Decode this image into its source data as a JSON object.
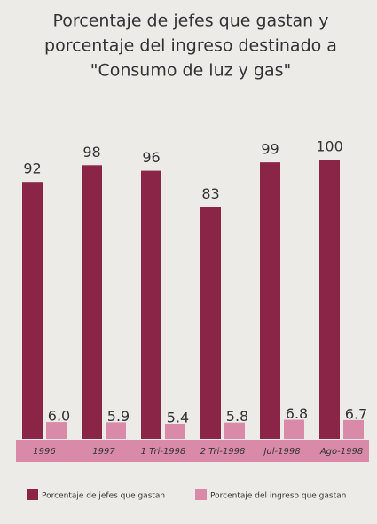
{
  "chart_data": {
    "type": "bar",
    "title": [
      "Porcentaje de jefes que gastan y",
      "porcentaje del ingreso destinado a",
      "\"Consumo de luz y gas\""
    ],
    "categories": [
      "1996",
      "1997",
      "1 Tri-1998",
      "2 Tri-1998",
      "Jul-1998",
      "Ago-1998"
    ],
    "series": [
      {
        "name": "Porcentaje de jefes que gastan",
        "color": "#8a2548",
        "values": [
          92,
          98,
          96,
          83,
          99,
          100
        ]
      },
      {
        "name": "Porcentaje del ingreso que gastan",
        "color": "#d98aa9",
        "values": [
          6.0,
          5.9,
          5.4,
          5.8,
          6.8,
          6.7
        ],
        "value_labels": [
          "6.0",
          "5.9",
          "5.4",
          "5.8",
          "6.8",
          "6.7"
        ]
      }
    ]
  }
}
